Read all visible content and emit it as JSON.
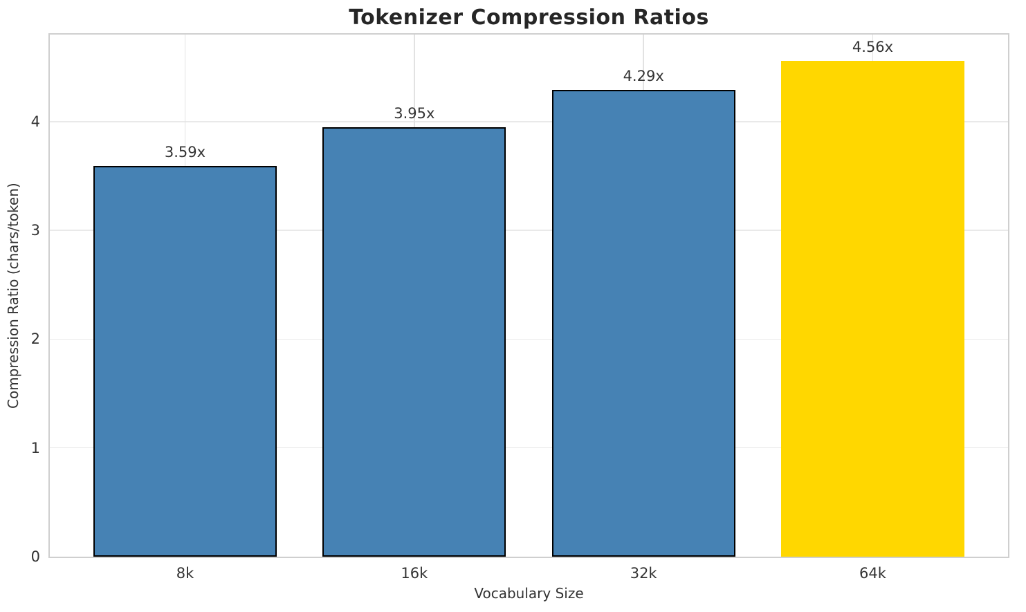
{
  "chart_data": {
    "type": "bar",
    "title": "Tokenizer Compression Ratios",
    "xlabel": "Vocabulary Size",
    "ylabel": "Compression Ratio (chars/token)",
    "categories": [
      "8k",
      "16k",
      "32k",
      "64k"
    ],
    "values": [
      3.59,
      3.95,
      4.29,
      4.56
    ],
    "bar_labels": [
      "3.59x",
      "3.95x",
      "4.29x",
      "4.56x"
    ],
    "ylim": [
      0,
      4.8
    ],
    "yticks": [
      0,
      1,
      2,
      3,
      4
    ],
    "xlim": [
      -0.59,
      3.59
    ],
    "bar_width": 0.8,
    "grid": true,
    "legend_position": "none",
    "highlight_index": 3,
    "bar_colors": [
      "#4682B4",
      "#4682B4",
      "#4682B4",
      "#FFD700"
    ],
    "bar_edge_colors": [
      "#000000",
      "#000000",
      "#000000",
      "none"
    ],
    "colors": {
      "bar_default": "#4682B4",
      "bar_highlight": "#FFD700",
      "bar_edge": "#000000",
      "grid": "#e9e9e9",
      "spine": "#cfcfcf",
      "tick_text": "#333333",
      "title_text": "#262626"
    }
  }
}
